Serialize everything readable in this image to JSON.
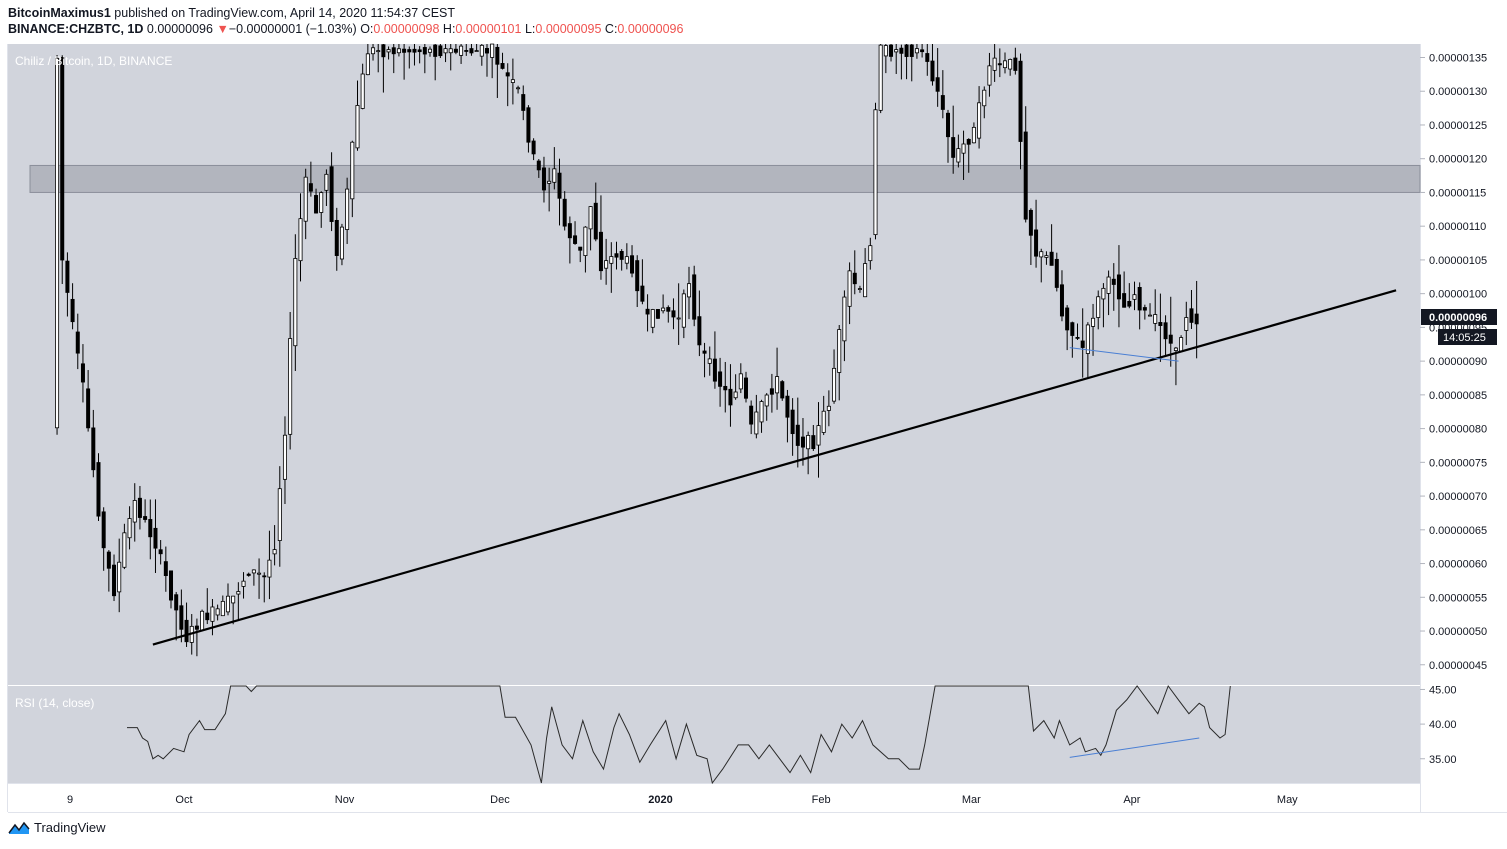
{
  "header": {
    "author": "BitcoinMaximus1",
    "published_text": "published on TradingView.com, April 14, 2020 11:54:37 CEST"
  },
  "ohlc": {
    "symbol": "BINANCE:CHZBTC, 1D",
    "last": "0.00000096",
    "change_arrow": "▼",
    "change": "−0.00000001 (−1.03%)",
    "open_label": "O:",
    "open": "0.00000098",
    "high_label": "H:",
    "high": "0.00000101",
    "low_label": "L:",
    "low": "0.00000095",
    "close_label": "C:",
    "close": "0.00000096"
  },
  "footer": {
    "brand": "TradingView",
    "logo_icon": "tradingview-logo-icon"
  },
  "colors": {
    "plot_bg": "#d1d4dc",
    "up": "#ffffff",
    "down": "#000000",
    "zone": "#b2b5be",
    "rsi_divergence": "#4a7fd4",
    "price_tag_bg": "#131722"
  },
  "chart_data": [
    {
      "type": "candlestick",
      "title": "Chiliz / Bitcoin, 1D, BINANCE",
      "yscale": "linear",
      "ylim": [
        4.2e-07,
        1.37e-06
      ],
      "y_tick_labels": [
        "0.00000135",
        "0.00000130",
        "0.00000125",
        "0.00000120",
        "0.00000115",
        "0.00000110",
        "0.00000105",
        "0.00000100",
        "0.00000095",
        "0.00000090",
        "0.00000085",
        "0.00000080",
        "0.00000075",
        "0.00000070",
        "0.00000065",
        "0.00000060",
        "0.00000055",
        "0.00000050",
        "0.00000045"
      ],
      "y_tick_values": [
        1.35e-06,
        1.3e-06,
        1.25e-06,
        1.2e-06,
        1.15e-06,
        1.1e-06,
        1.05e-06,
        1e-06,
        9.5e-07,
        9e-07,
        8.5e-07,
        8e-07,
        7.5e-07,
        7e-07,
        6.5e-07,
        6e-07,
        5.5e-07,
        5e-07,
        4.5e-07
      ],
      "x_tick_labels": [
        "9",
        "Oct",
        "Nov",
        "Dec",
        "2020",
        "Feb",
        "Mar",
        "Apr",
        "May"
      ],
      "x_tick_dates": [
        "2019-09-09",
        "2019-10-01",
        "2019-11-01",
        "2019-12-01",
        "2020-01-01",
        "2020-02-01",
        "2020-03-01",
        "2020-04-01",
        "2020-05-01"
      ],
      "current_price_label": "0.00000096",
      "countdown_label": "14:05:25",
      "resistance_zone": [
        1.15e-06,
        1.19e-06
      ],
      "trendline": [
        {
          "date": "2019-09-25",
          "price": 4.8e-07
        },
        {
          "date": "2020-05-22",
          "price": 1.005e-06
        }
      ],
      "divergence_line_price": [
        {
          "date": "2020-03-20",
          "price": 9.2e-07
        },
        {
          "date": "2020-04-10",
          "price": 9e-07
        }
      ],
      "keypoints": [
        {
          "date": "2019-09-06",
          "price": 8e-07
        },
        {
          "date": "2019-09-07",
          "price": 1.35e-06
        },
        {
          "date": "2019-09-08",
          "price": 1.05e-06
        },
        {
          "date": "2019-09-10",
          "price": 9.5e-07
        },
        {
          "date": "2019-09-12",
          "price": 8.6e-07
        },
        {
          "date": "2019-09-14",
          "price": 7.4e-07
        },
        {
          "date": "2019-09-16",
          "price": 6.2e-07
        },
        {
          "date": "2019-09-18",
          "price": 5.6e-07
        },
        {
          "date": "2019-09-20",
          "price": 6.4e-07
        },
        {
          "date": "2019-09-22",
          "price": 6.9e-07
        },
        {
          "date": "2019-09-24",
          "price": 6.6e-07
        },
        {
          "date": "2019-09-26",
          "price": 6.3e-07
        },
        {
          "date": "2019-09-28",
          "price": 5.8e-07
        },
        {
          "date": "2019-09-30",
          "price": 5.3e-07
        },
        {
          "date": "2019-10-02",
          "price": 4.9e-07
        },
        {
          "date": "2019-10-05",
          "price": 5.2e-07
        },
        {
          "date": "2019-10-08",
          "price": 5.3e-07
        },
        {
          "date": "2019-10-11",
          "price": 5.5e-07
        },
        {
          "date": "2019-10-14",
          "price": 5.9e-07
        },
        {
          "date": "2019-10-17",
          "price": 5.8e-07
        },
        {
          "date": "2019-10-19",
          "price": 6.3e-07
        },
        {
          "date": "2019-10-21",
          "price": 8e-07
        },
        {
          "date": "2019-10-23",
          "price": 1.05e-06
        },
        {
          "date": "2019-10-25",
          "price": 1.17e-06
        },
        {
          "date": "2019-10-27",
          "price": 1.12e-06
        },
        {
          "date": "2019-10-29",
          "price": 1.18e-06
        },
        {
          "date": "2019-10-31",
          "price": 1.05e-06
        },
        {
          "date": "2019-11-02",
          "price": 1.15e-06
        },
        {
          "date": "2019-11-04",
          "price": 1.28e-06
        },
        {
          "date": "2019-11-06",
          "price": 1.36e-06
        },
        {
          "date": "2019-11-30",
          "price": 1.36e-06
        },
        {
          "date": "2019-12-02",
          "price": 1.33e-06
        },
        {
          "date": "2019-12-05",
          "price": 1.3e-06
        },
        {
          "date": "2019-12-08",
          "price": 1.2e-06
        },
        {
          "date": "2019-12-10",
          "price": 1.16e-06
        },
        {
          "date": "2019-12-12",
          "price": 1.18e-06
        },
        {
          "date": "2019-12-14",
          "price": 1.1e-06
        },
        {
          "date": "2019-12-17",
          "price": 1.06e-06
        },
        {
          "date": "2019-12-19",
          "price": 1.13e-06
        },
        {
          "date": "2019-12-21",
          "price": 1.04e-06
        },
        {
          "date": "2019-12-24",
          "price": 1.06e-06
        },
        {
          "date": "2019-12-27",
          "price": 1.04e-06
        },
        {
          "date": "2019-12-30",
          "price": 9.6e-07
        },
        {
          "date": "2020-01-02",
          "price": 9.8e-07
        },
        {
          "date": "2020-01-05",
          "price": 9.6e-07
        },
        {
          "date": "2020-01-07",
          "price": 1.02e-06
        },
        {
          "date": "2020-01-09",
          "price": 9.2e-07
        },
        {
          "date": "2020-01-12",
          "price": 8.8e-07
        },
        {
          "date": "2020-01-15",
          "price": 8.4e-07
        },
        {
          "date": "2020-01-17",
          "price": 8.8e-07
        },
        {
          "date": "2020-01-19",
          "price": 8e-07
        },
        {
          "date": "2020-01-22",
          "price": 8.5e-07
        },
        {
          "date": "2020-01-24",
          "price": 8.7e-07
        },
        {
          "date": "2020-01-26",
          "price": 8.2e-07
        },
        {
          "date": "2020-01-28",
          "price": 7.8e-07
        },
        {
          "date": "2020-01-31",
          "price": 7.8e-07
        },
        {
          "date": "2020-02-03",
          "price": 8.4e-07
        },
        {
          "date": "2020-02-05",
          "price": 9.4e-07
        },
        {
          "date": "2020-02-07",
          "price": 1.03e-06
        },
        {
          "date": "2020-02-09",
          "price": 1e-06
        },
        {
          "date": "2020-02-11",
          "price": 1.08e-06
        },
        {
          "date": "2020-02-12",
          "price": 1.28e-06
        },
        {
          "date": "2020-02-13",
          "price": 1.36e-06
        },
        {
          "date": "2020-02-21",
          "price": 1.36e-06
        },
        {
          "date": "2020-02-24",
          "price": 1.3e-06
        },
        {
          "date": "2020-02-27",
          "price": 1.2e-06
        },
        {
          "date": "2020-03-02",
          "price": 1.24e-06
        },
        {
          "date": "2020-03-05",
          "price": 1.34e-06
        },
        {
          "date": "2020-03-10",
          "price": 1.34e-06
        },
        {
          "date": "2020-03-12",
          "price": 1.12e-06
        },
        {
          "date": "2020-03-14",
          "price": 1.06e-06
        },
        {
          "date": "2020-03-17",
          "price": 1.05e-06
        },
        {
          "date": "2020-03-19",
          "price": 9.7e-07
        },
        {
          "date": "2020-03-21",
          "price": 9.4e-07
        },
        {
          "date": "2020-03-23",
          "price": 9.2e-07
        },
        {
          "date": "2020-03-25",
          "price": 9.7e-07
        },
        {
          "date": "2020-03-27",
          "price": 1.01e-06
        },
        {
          "date": "2020-03-29",
          "price": 1.02e-06
        },
        {
          "date": "2020-03-31",
          "price": 9.8e-07
        },
        {
          "date": "2020-04-02",
          "price": 1e-06
        },
        {
          "date": "2020-04-04",
          "price": 9.7e-07
        },
        {
          "date": "2020-04-06",
          "price": 9.6e-07
        },
        {
          "date": "2020-04-08",
          "price": 9.4e-07
        },
        {
          "date": "2020-04-10",
          "price": 9.1e-07
        },
        {
          "date": "2020-04-12",
          "price": 9.7e-07
        },
        {
          "date": "2020-04-14",
          "price": 9.6e-07
        }
      ]
    },
    {
      "type": "line",
      "title": "RSI (14, close)",
      "ylim": [
        31.5,
        45.5
      ],
      "y_tick_labels": [
        "45.00",
        "40.00",
        "35.00"
      ],
      "y_tick_values": [
        45,
        40,
        35
      ],
      "series": [
        {
          "values": [
            {
              "date": "2019-09-20",
              "rsi": 39.5
            },
            {
              "date": "2019-09-22",
              "rsi": 39.5
            },
            {
              "date": "2019-09-23",
              "rsi": 38.0
            },
            {
              "date": "2019-09-24",
              "rsi": 37.5
            },
            {
              "date": "2019-09-25",
              "rsi": 35.0
            },
            {
              "date": "2019-09-26",
              "rsi": 35.5
            },
            {
              "date": "2019-09-27",
              "rsi": 35.0
            },
            {
              "date": "2019-09-29",
              "rsi": 36.5
            },
            {
              "date": "2019-10-01",
              "rsi": 36.0
            },
            {
              "date": "2019-10-02",
              "rsi": 38.5
            },
            {
              "date": "2019-10-04",
              "rsi": 40.5
            },
            {
              "date": "2019-10-05",
              "rsi": 39.2
            },
            {
              "date": "2019-10-07",
              "rsi": 39.2
            },
            {
              "date": "2019-10-09",
              "rsi": 41.5
            },
            {
              "date": "2019-10-10",
              "rsi": 45.5
            },
            {
              "date": "2019-10-13",
              "rsi": 45.5
            },
            {
              "date": "2019-10-14",
              "rsi": 44.7
            },
            {
              "date": "2019-10-15",
              "rsi": 45.5
            },
            {
              "date": "2019-12-01",
              "rsi": 45.5
            },
            {
              "date": "2019-12-02",
              "rsi": 41.0
            },
            {
              "date": "2019-12-04",
              "rsi": 41.0
            },
            {
              "date": "2019-12-07",
              "rsi": 37.0
            },
            {
              "date": "2019-12-09",
              "rsi": 31.5
            },
            {
              "date": "2019-12-10",
              "rsi": 38.0
            },
            {
              "date": "2019-12-11",
              "rsi": 42.5
            },
            {
              "date": "2019-12-13",
              "rsi": 37.0
            },
            {
              "date": "2019-12-15",
              "rsi": 35.0
            },
            {
              "date": "2019-12-17",
              "rsi": 40.5
            },
            {
              "date": "2019-12-19",
              "rsi": 36.0
            },
            {
              "date": "2019-12-21",
              "rsi": 33.5
            },
            {
              "date": "2019-12-23",
              "rsi": 39.5
            },
            {
              "date": "2019-12-24",
              "rsi": 41.5
            },
            {
              "date": "2019-12-26",
              "rsi": 38.5
            },
            {
              "date": "2019-12-28",
              "rsi": 34.5
            },
            {
              "date": "2019-12-30",
              "rsi": 37.0
            },
            {
              "date": "2020-01-02",
              "rsi": 40.5
            },
            {
              "date": "2020-01-04",
              "rsi": 35.0
            },
            {
              "date": "2020-01-06",
              "rsi": 40.0
            },
            {
              "date": "2020-01-08",
              "rsi": 35.5
            },
            {
              "date": "2020-01-10",
              "rsi": 35.0
            },
            {
              "date": "2020-01-11",
              "rsi": 31.5
            },
            {
              "date": "2020-01-13",
              "rsi": 33.5
            },
            {
              "date": "2020-01-16",
              "rsi": 37.0
            },
            {
              "date": "2020-01-18",
              "rsi": 37.0
            },
            {
              "date": "2020-01-20",
              "rsi": 35.0
            },
            {
              "date": "2020-01-22",
              "rsi": 37.0
            },
            {
              "date": "2020-01-24",
              "rsi": 35.0
            },
            {
              "date": "2020-01-26",
              "rsi": 33.0
            },
            {
              "date": "2020-01-28",
              "rsi": 35.5
            },
            {
              "date": "2020-01-30",
              "rsi": 33.0
            },
            {
              "date": "2020-02-01",
              "rsi": 38.5
            },
            {
              "date": "2020-02-03",
              "rsi": 36.0
            },
            {
              "date": "2020-02-05",
              "rsi": 40.0
            },
            {
              "date": "2020-02-07",
              "rsi": 38.0
            },
            {
              "date": "2020-02-09",
              "rsi": 40.5
            },
            {
              "date": "2020-02-11",
              "rsi": 37.0
            },
            {
              "date": "2020-02-14",
              "rsi": 35.0
            },
            {
              "date": "2020-02-16",
              "rsi": 35.0
            },
            {
              "date": "2020-02-18",
              "rsi": 33.5
            },
            {
              "date": "2020-02-20",
              "rsi": 33.5
            },
            {
              "date": "2020-02-21",
              "rsi": 37.0
            },
            {
              "date": "2020-02-23",
              "rsi": 45.5
            },
            {
              "date": "2020-03-12",
              "rsi": 45.5
            },
            {
              "date": "2020-03-13",
              "rsi": 39.0
            },
            {
              "date": "2020-03-15",
              "rsi": 40.5
            },
            {
              "date": "2020-03-17",
              "rsi": 38.0
            },
            {
              "date": "2020-03-18",
              "rsi": 40.5
            },
            {
              "date": "2020-03-20",
              "rsi": 37.0
            },
            {
              "date": "2020-03-22",
              "rsi": 38.0
            },
            {
              "date": "2020-03-23",
              "rsi": 36.0
            },
            {
              "date": "2020-03-25",
              "rsi": 36.5
            },
            {
              "date": "2020-03-26",
              "rsi": 35.5
            },
            {
              "date": "2020-03-27",
              "rsi": 37.0
            },
            {
              "date": "2020-03-29",
              "rsi": 42.0
            },
            {
              "date": "2020-03-31",
              "rsi": 43.5
            },
            {
              "date": "2020-04-02",
              "rsi": 45.5
            },
            {
              "date": "2020-04-04",
              "rsi": 43.5
            },
            {
              "date": "2020-04-06",
              "rsi": 41.5
            },
            {
              "date": "2020-04-07",
              "rsi": 43.5
            },
            {
              "date": "2020-04-08",
              "rsi": 45.5
            },
            {
              "date": "2020-04-10",
              "rsi": 43.5
            },
            {
              "date": "2020-04-12",
              "rsi": 41.5
            },
            {
              "date": "2020-04-14",
              "rsi": 43.0
            },
            {
              "date": "2020-04-15",
              "rsi": 42.5
            },
            {
              "date": "2020-04-16",
              "rsi": 39.5
            },
            {
              "date": "2020-04-18",
              "rsi": 38.0
            },
            {
              "date": "2020-04-19",
              "rsi": 38.5
            },
            {
              "date": "2020-04-20",
              "rsi": 45.5
            }
          ]
        }
      ],
      "divergence_line_rsi": [
        {
          "date": "2020-03-20",
          "rsi": 35.2
        },
        {
          "date": "2020-04-14",
          "rsi": 38.0
        }
      ]
    }
  ]
}
